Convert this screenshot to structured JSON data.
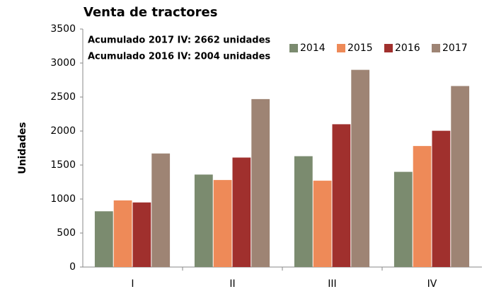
{
  "chart_data": {
    "type": "bar",
    "title": "Venta de tractores",
    "y_label": "Unidades",
    "annotations": [
      "Acumulado 2017 IV: 2662 unidades",
      "Acumulado 2016 IV: 2004 unidades"
    ],
    "categories": [
      "I",
      "II",
      "III",
      "IV"
    ],
    "series": [
      {
        "name": "2014",
        "color": "#7b8b6f",
        "values": [
          820,
          1360,
          1630,
          1400
        ]
      },
      {
        "name": "2015",
        "color": "#ee8a58",
        "values": [
          980,
          1280,
          1270,
          1780
        ]
      },
      {
        "name": "2016",
        "color": "#a0302d",
        "values": [
          950,
          1610,
          2100,
          2004
        ]
      },
      {
        "name": "2017",
        "color": "#9e8474",
        "values": [
          1670,
          2470,
          2900,
          2662
        ]
      }
    ],
    "ylim": [
      0,
      3500
    ],
    "yticks": [
      0,
      500,
      1000,
      1500,
      2000,
      2500,
      3000,
      3500
    ],
    "grid": false,
    "legend": "top-right"
  }
}
